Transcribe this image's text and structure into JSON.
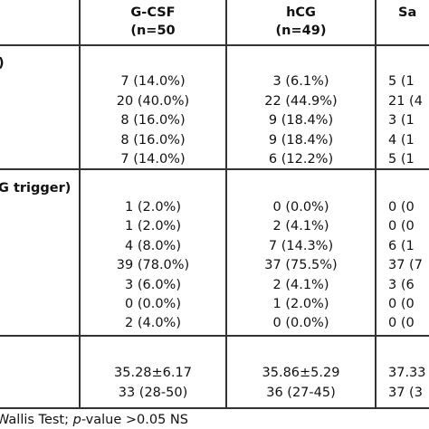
{
  "header": {
    "columns": [
      {
        "name": "G-CSF",
        "n": "(n=50"
      },
      {
        "name": "hCG",
        "n": "(n=49)"
      },
      {
        "name": "Sa"
      }
    ]
  },
  "sections": [
    {
      "label": ")",
      "rows": [
        [
          "7 (14.0%)",
          "3 (6.1%)",
          "5 (1"
        ],
        [
          "20 (40.0%)",
          "22 (44.9%)",
          "21 (4"
        ],
        [
          "8 (16.0%)",
          "9 (18.4%)",
          "3 (1"
        ],
        [
          "8 (16.0%)",
          "9 (18.4%)",
          "4 (1"
        ],
        [
          "7 (14.0%)",
          "6 (12.2%)",
          "5 (1"
        ]
      ]
    },
    {
      "label": "G trigger)",
      "rows": [
        [
          "1 (2.0%)",
          "0 (0.0%)",
          "0 (0"
        ],
        [
          "1 (2.0%)",
          "2 (4.1%)",
          "0 (0"
        ],
        [
          "4 (8.0%)",
          "7 (14.3%)",
          "6 (1"
        ],
        [
          "39 (78.0%)",
          "37 (75.5%)",
          "37 (7"
        ],
        [
          "3 (6.0%)",
          "2 (4.1%)",
          "3 (6"
        ],
        [
          "0 (0.0%)",
          "1 (2.0%)",
          "0 (0"
        ],
        [
          "2 (4.0%)",
          "0 (0.0%)",
          "0 (0"
        ]
      ]
    },
    {
      "rows": [
        [
          "35.28±6.17",
          "35.86±5.29",
          "37.33"
        ],
        [
          "33 (28-50)",
          "36 (27-45)",
          "37 (3"
        ]
      ]
    }
  ],
  "footer": {
    "before": "Wallis Test; ",
    "italic": "p",
    "after": "-value >0.05 NS"
  }
}
